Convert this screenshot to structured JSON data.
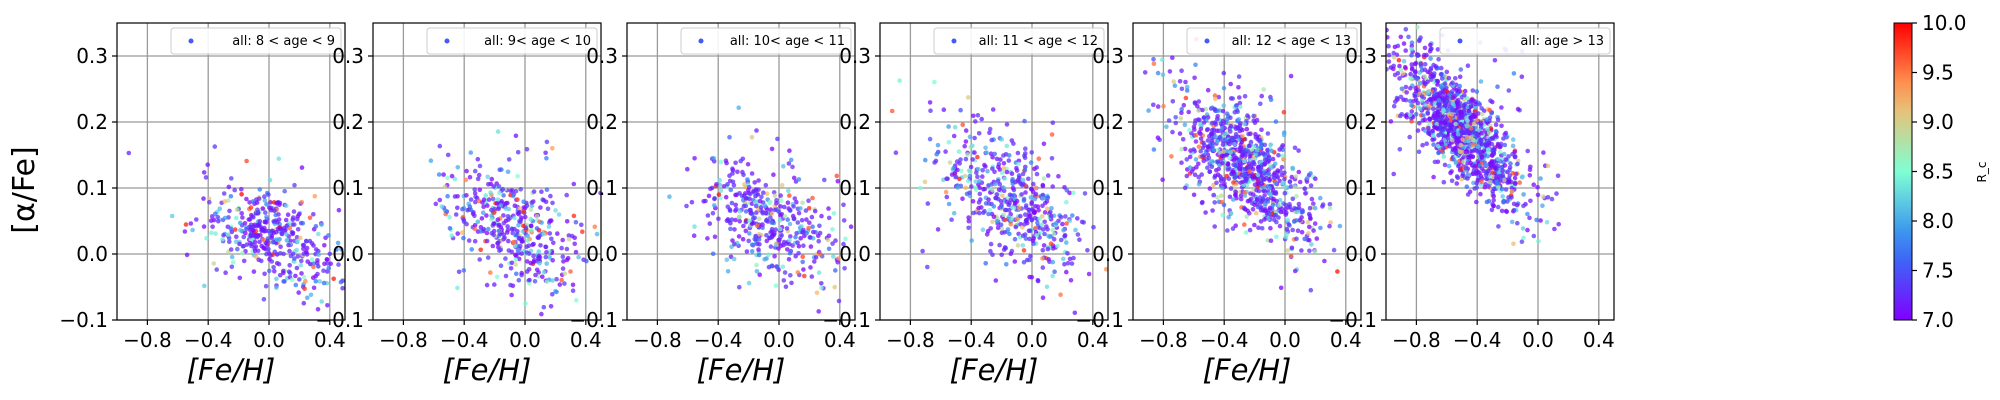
{
  "figure": {
    "ylabel": "[α/Fe]",
    "colorbar": {
      "label": "R_c",
      "min": 7.0,
      "max": 10.0,
      "ticks": [
        "7.0",
        "7.5",
        "8.0",
        "8.5",
        "9.0",
        "9.5",
        "10.0"
      ]
    }
  },
  "chart_data": [
    {
      "type": "scatter",
      "xlabel": "[Fe/H]",
      "ylabel": "[α/Fe]",
      "xlim": [
        -1.0,
        0.5
      ],
      "ylim": [
        -0.1,
        0.35
      ],
      "xticks": [
        "−0.8",
        "−0.4",
        "0.0",
        "0.4"
      ],
      "yticks": [
        "−0.1",
        "0.0",
        "0.1",
        "0.2",
        "0.3"
      ],
      "legend": "all: 8 < age < 9",
      "legend_loc": "upper right",
      "grid": true,
      "cloud": {
        "cx": 0.0,
        "cy": 0.03,
        "sx": 0.22,
        "sy": 0.035,
        "slope": -0.08,
        "n": 430
      }
    },
    {
      "type": "scatter",
      "xlabel": "[Fe/H]",
      "ylabel": "",
      "xlim": [
        -1.0,
        0.5
      ],
      "ylim": [
        -0.1,
        0.35
      ],
      "xticks": [
        "−0.8",
        "−0.4",
        "0.0",
        "0.4"
      ],
      "yticks": [
        "−0.1",
        "0.0",
        "0.1",
        "0.2",
        "0.3"
      ],
      "legend": "all: 9< age < 10",
      "legend_loc": "upper right",
      "grid": true,
      "cloud": {
        "cx": -0.05,
        "cy": 0.04,
        "sx": 0.22,
        "sy": 0.04,
        "slope": -0.08,
        "n": 440
      }
    },
    {
      "type": "scatter",
      "xlabel": "[Fe/H]",
      "ylabel": "",
      "xlim": [
        -1.0,
        0.5
      ],
      "ylim": [
        -0.1,
        0.35
      ],
      "xticks": [
        "−0.8",
        "−0.4",
        "0.0",
        "0.4"
      ],
      "yticks": [
        "−0.1",
        "0.0",
        "0.1",
        "0.2",
        "0.3"
      ],
      "legend": "all: 10< age < 11",
      "legend_loc": "upper right",
      "grid": true,
      "cloud": {
        "cx": -0.05,
        "cy": 0.05,
        "sx": 0.24,
        "sy": 0.04,
        "slope": -0.1,
        "n": 420
      }
    },
    {
      "type": "scatter",
      "xlabel": "[Fe/H]",
      "ylabel": "",
      "xlim": [
        -1.0,
        0.5
      ],
      "ylim": [
        -0.1,
        0.35
      ],
      "xticks": [
        "−0.8",
        "−0.4",
        "0.0",
        "0.4"
      ],
      "yticks": [
        "−0.1",
        "0.0",
        "0.1",
        "0.2",
        "0.3"
      ],
      "legend": "all: 11 < age < 12",
      "legend_loc": "upper right",
      "grid": true,
      "cloud": {
        "cx": -0.15,
        "cy": 0.08,
        "sx": 0.24,
        "sy": 0.045,
        "slope": -0.15,
        "n": 520
      }
    },
    {
      "type": "scatter",
      "xlabel": "[Fe/H]",
      "ylabel": "",
      "xlim": [
        -1.0,
        0.5
      ],
      "ylim": [
        -0.1,
        0.35
      ],
      "xticks": [
        "−0.8",
        "−0.4",
        "0.0",
        "0.4"
      ],
      "yticks": [
        "−0.1",
        "0.0",
        "0.1",
        "0.2",
        "0.3"
      ],
      "legend": "all: 12 < age < 13",
      "legend_loc": "upper right",
      "grid": true,
      "cloud": {
        "cx": -0.25,
        "cy": 0.13,
        "sx": 0.22,
        "sy": 0.04,
        "slope": -0.18,
        "n": 900
      }
    },
    {
      "type": "scatter",
      "xlabel": "",
      "ylabel": "",
      "xlim": [
        -1.0,
        0.5
      ],
      "ylim": [
        -0.1,
        0.35
      ],
      "xticks": [
        "−0.8",
        "−0.4",
        "0.0",
        "0.4"
      ],
      "yticks": [
        "−0.1",
        "0.0",
        "0.1",
        "0.2",
        "0.3"
      ],
      "legend": "all: age > 13",
      "legend_loc": "upper right",
      "grid": true,
      "cloud": {
        "cx": -0.5,
        "cy": 0.19,
        "sx": 0.2,
        "sy": 0.035,
        "slope": -0.22,
        "n": 1300
      }
    }
  ]
}
